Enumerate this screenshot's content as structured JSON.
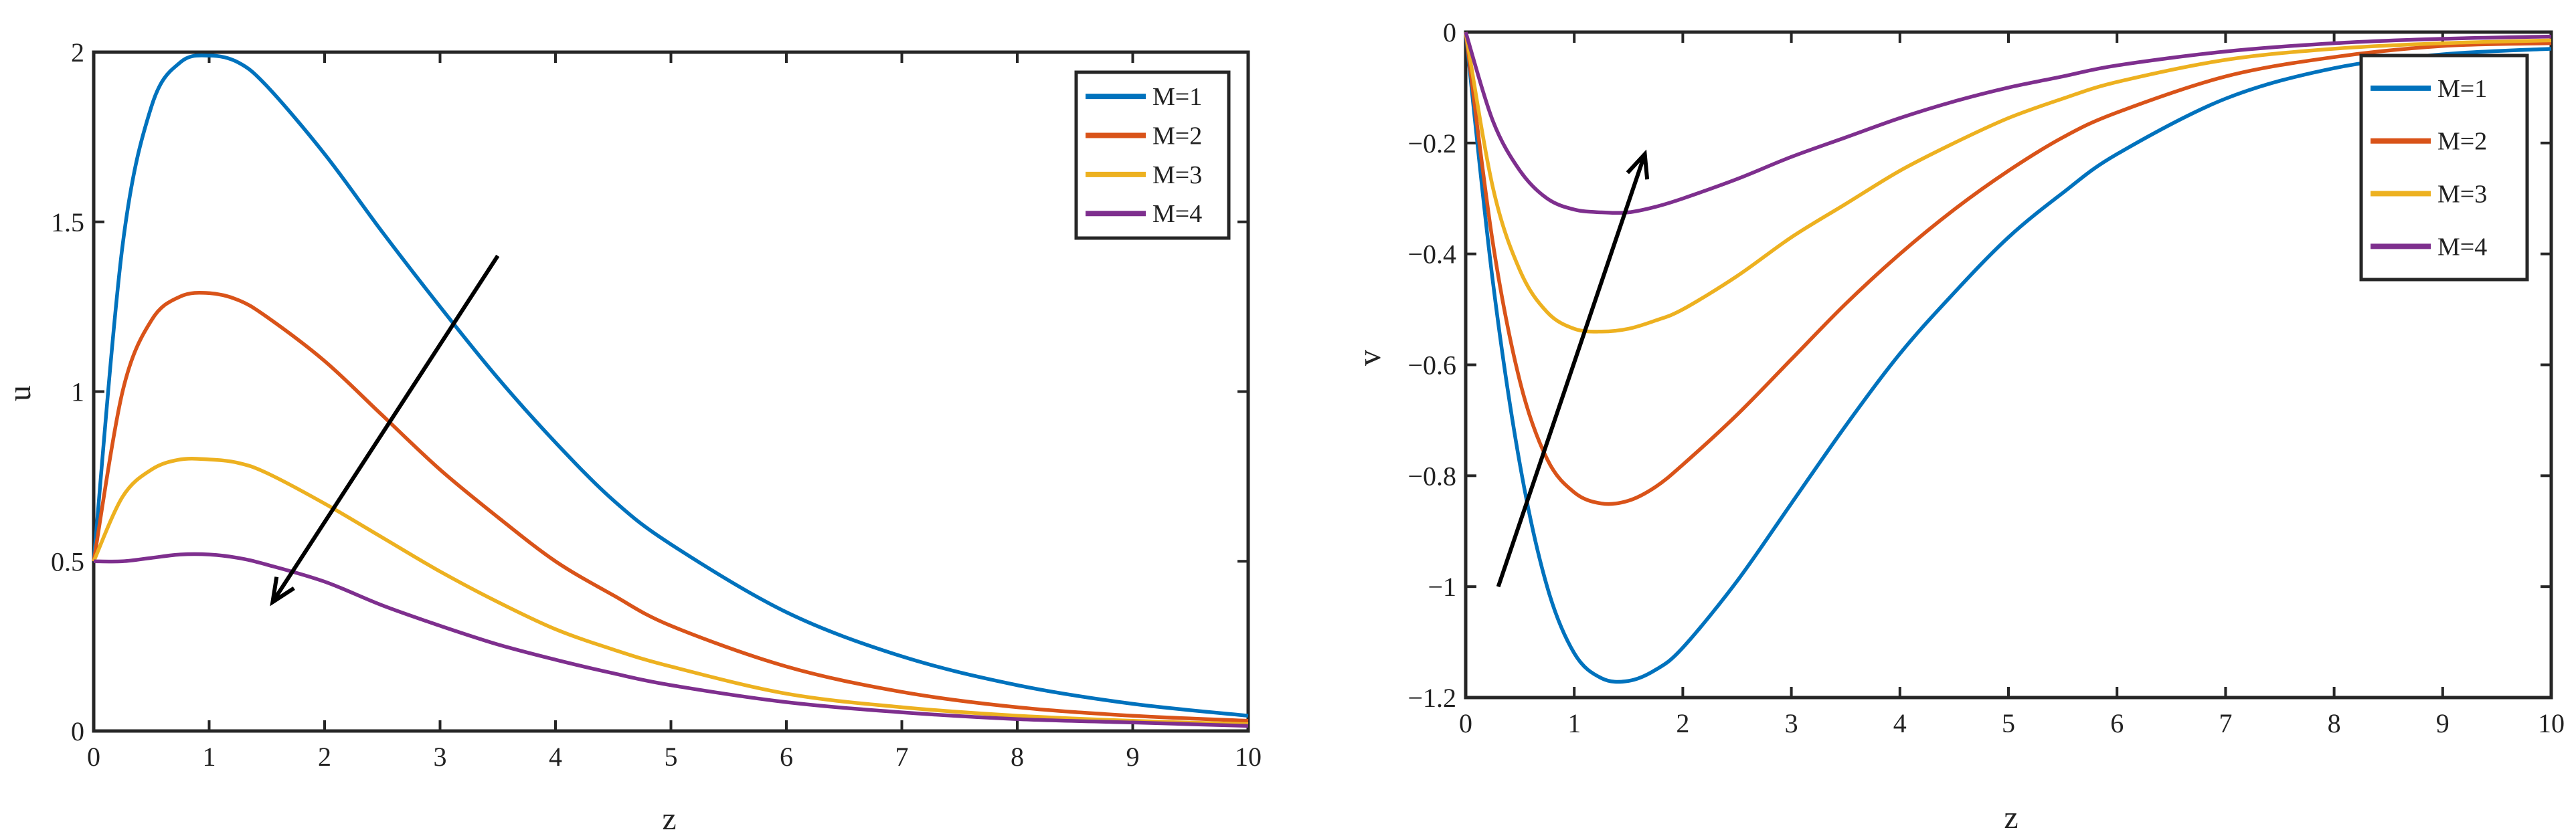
{
  "chart_data": [
    {
      "type": "line",
      "title": "",
      "xlabel": "z",
      "ylabel": "u",
      "xlim": [
        0,
        10
      ],
      "ylim": [
        0,
        2
      ],
      "x_ticks": [
        "0",
        "1",
        "2",
        "3",
        "4",
        "5",
        "6",
        "7",
        "8",
        "9",
        "10"
      ],
      "y_ticks": [
        "0",
        "0.5",
        "1",
        "1.5",
        "2"
      ],
      "grid": false,
      "legend_position": "top-right",
      "x": [
        0,
        0.25,
        0.5,
        0.75,
        1,
        1.25,
        1.5,
        2,
        2.5,
        3,
        3.5,
        4,
        4.5,
        5,
        6,
        7,
        8,
        9,
        10
      ],
      "series": [
        {
          "name": "M=1",
          "color": "#0072BD",
          "values": [
            0.5,
            1.43,
            1.84,
            1.97,
            1.99,
            1.97,
            1.9,
            1.7,
            1.47,
            1.25,
            1.04,
            0.85,
            0.68,
            0.55,
            0.35,
            0.22,
            0.135,
            0.08,
            0.045
          ]
        },
        {
          "name": "M=2",
          "color": "#D95319",
          "values": [
            0.5,
            1.0,
            1.21,
            1.28,
            1.29,
            1.27,
            1.22,
            1.09,
            0.93,
            0.77,
            0.63,
            0.5,
            0.4,
            0.31,
            0.19,
            0.115,
            0.07,
            0.045,
            0.03
          ]
        },
        {
          "name": "M=3",
          "color": "#EDB120",
          "values": [
            0.5,
            0.69,
            0.77,
            0.8,
            0.8,
            0.79,
            0.76,
            0.67,
            0.57,
            0.47,
            0.38,
            0.3,
            0.24,
            0.19,
            0.11,
            0.07,
            0.045,
            0.03,
            0.02
          ]
        },
        {
          "name": "M=4",
          "color": "#7E2F8E",
          "values": [
            0.5,
            0.5,
            0.51,
            0.52,
            0.52,
            0.51,
            0.49,
            0.44,
            0.37,
            0.31,
            0.255,
            0.21,
            0.17,
            0.135,
            0.085,
            0.055,
            0.035,
            0.025,
            0.015
          ]
        }
      ],
      "annotations": [
        {
          "type": "arrow",
          "from": [
            3.5,
            1.4
          ],
          "to": [
            1.55,
            0.38
          ],
          "meaning": "increasing M"
        }
      ]
    },
    {
      "type": "line",
      "title": "",
      "xlabel": "z",
      "ylabel": "v",
      "xlim": [
        0,
        10
      ],
      "ylim": [
        -1.2,
        0
      ],
      "x_ticks": [
        "0",
        "1",
        "2",
        "3",
        "4",
        "5",
        "6",
        "7",
        "8",
        "9",
        "10"
      ],
      "y_ticks": [
        "0",
        "−0.2",
        "−0.4",
        "−0.6",
        "−0.8",
        "−1",
        "−1.2"
      ],
      "grid": false,
      "legend_position": "top-right",
      "x": [
        0,
        0.25,
        0.5,
        0.75,
        1,
        1.25,
        1.5,
        1.75,
        2,
        2.5,
        3,
        3.5,
        4,
        4.5,
        5,
        5.5,
        6,
        7,
        8,
        9,
        10
      ],
      "series": [
        {
          "name": "M=1",
          "color": "#0072BD",
          "values": [
            0,
            -0.45,
            -0.78,
            -1.0,
            -1.12,
            -1.165,
            -1.17,
            -1.15,
            -1.11,
            -0.99,
            -0.85,
            -0.71,
            -0.58,
            -0.47,
            -0.37,
            -0.29,
            -0.22,
            -0.12,
            -0.065,
            -0.04,
            -0.03
          ]
        },
        {
          "name": "M=2",
          "color": "#D95319",
          "values": [
            0,
            -0.38,
            -0.63,
            -0.77,
            -0.83,
            -0.85,
            -0.845,
            -0.82,
            -0.78,
            -0.69,
            -0.59,
            -0.49,
            -0.4,
            -0.32,
            -0.25,
            -0.19,
            -0.145,
            -0.08,
            -0.045,
            -0.025,
            -0.02
          ]
        },
        {
          "name": "M=3",
          "color": "#EDB120",
          "values": [
            0,
            -0.28,
            -0.43,
            -0.505,
            -0.535,
            -0.54,
            -0.535,
            -0.52,
            -0.5,
            -0.44,
            -0.37,
            -0.31,
            -0.25,
            -0.2,
            -0.155,
            -0.12,
            -0.09,
            -0.05,
            -0.03,
            -0.02,
            -0.015
          ]
        },
        {
          "name": "M=4",
          "color": "#7E2F8E",
          "values": [
            0,
            -0.16,
            -0.25,
            -0.3,
            -0.32,
            -0.325,
            -0.325,
            -0.315,
            -0.3,
            -0.265,
            -0.225,
            -0.19,
            -0.155,
            -0.125,
            -0.1,
            -0.08,
            -0.06,
            -0.035,
            -0.02,
            -0.012,
            -0.008
          ]
        }
      ],
      "annotations": [
        {
          "type": "arrow",
          "from": [
            0.3,
            -1.0
          ],
          "to": [
            1.65,
            -0.22
          ],
          "meaning": "increasing M"
        }
      ]
    }
  ]
}
